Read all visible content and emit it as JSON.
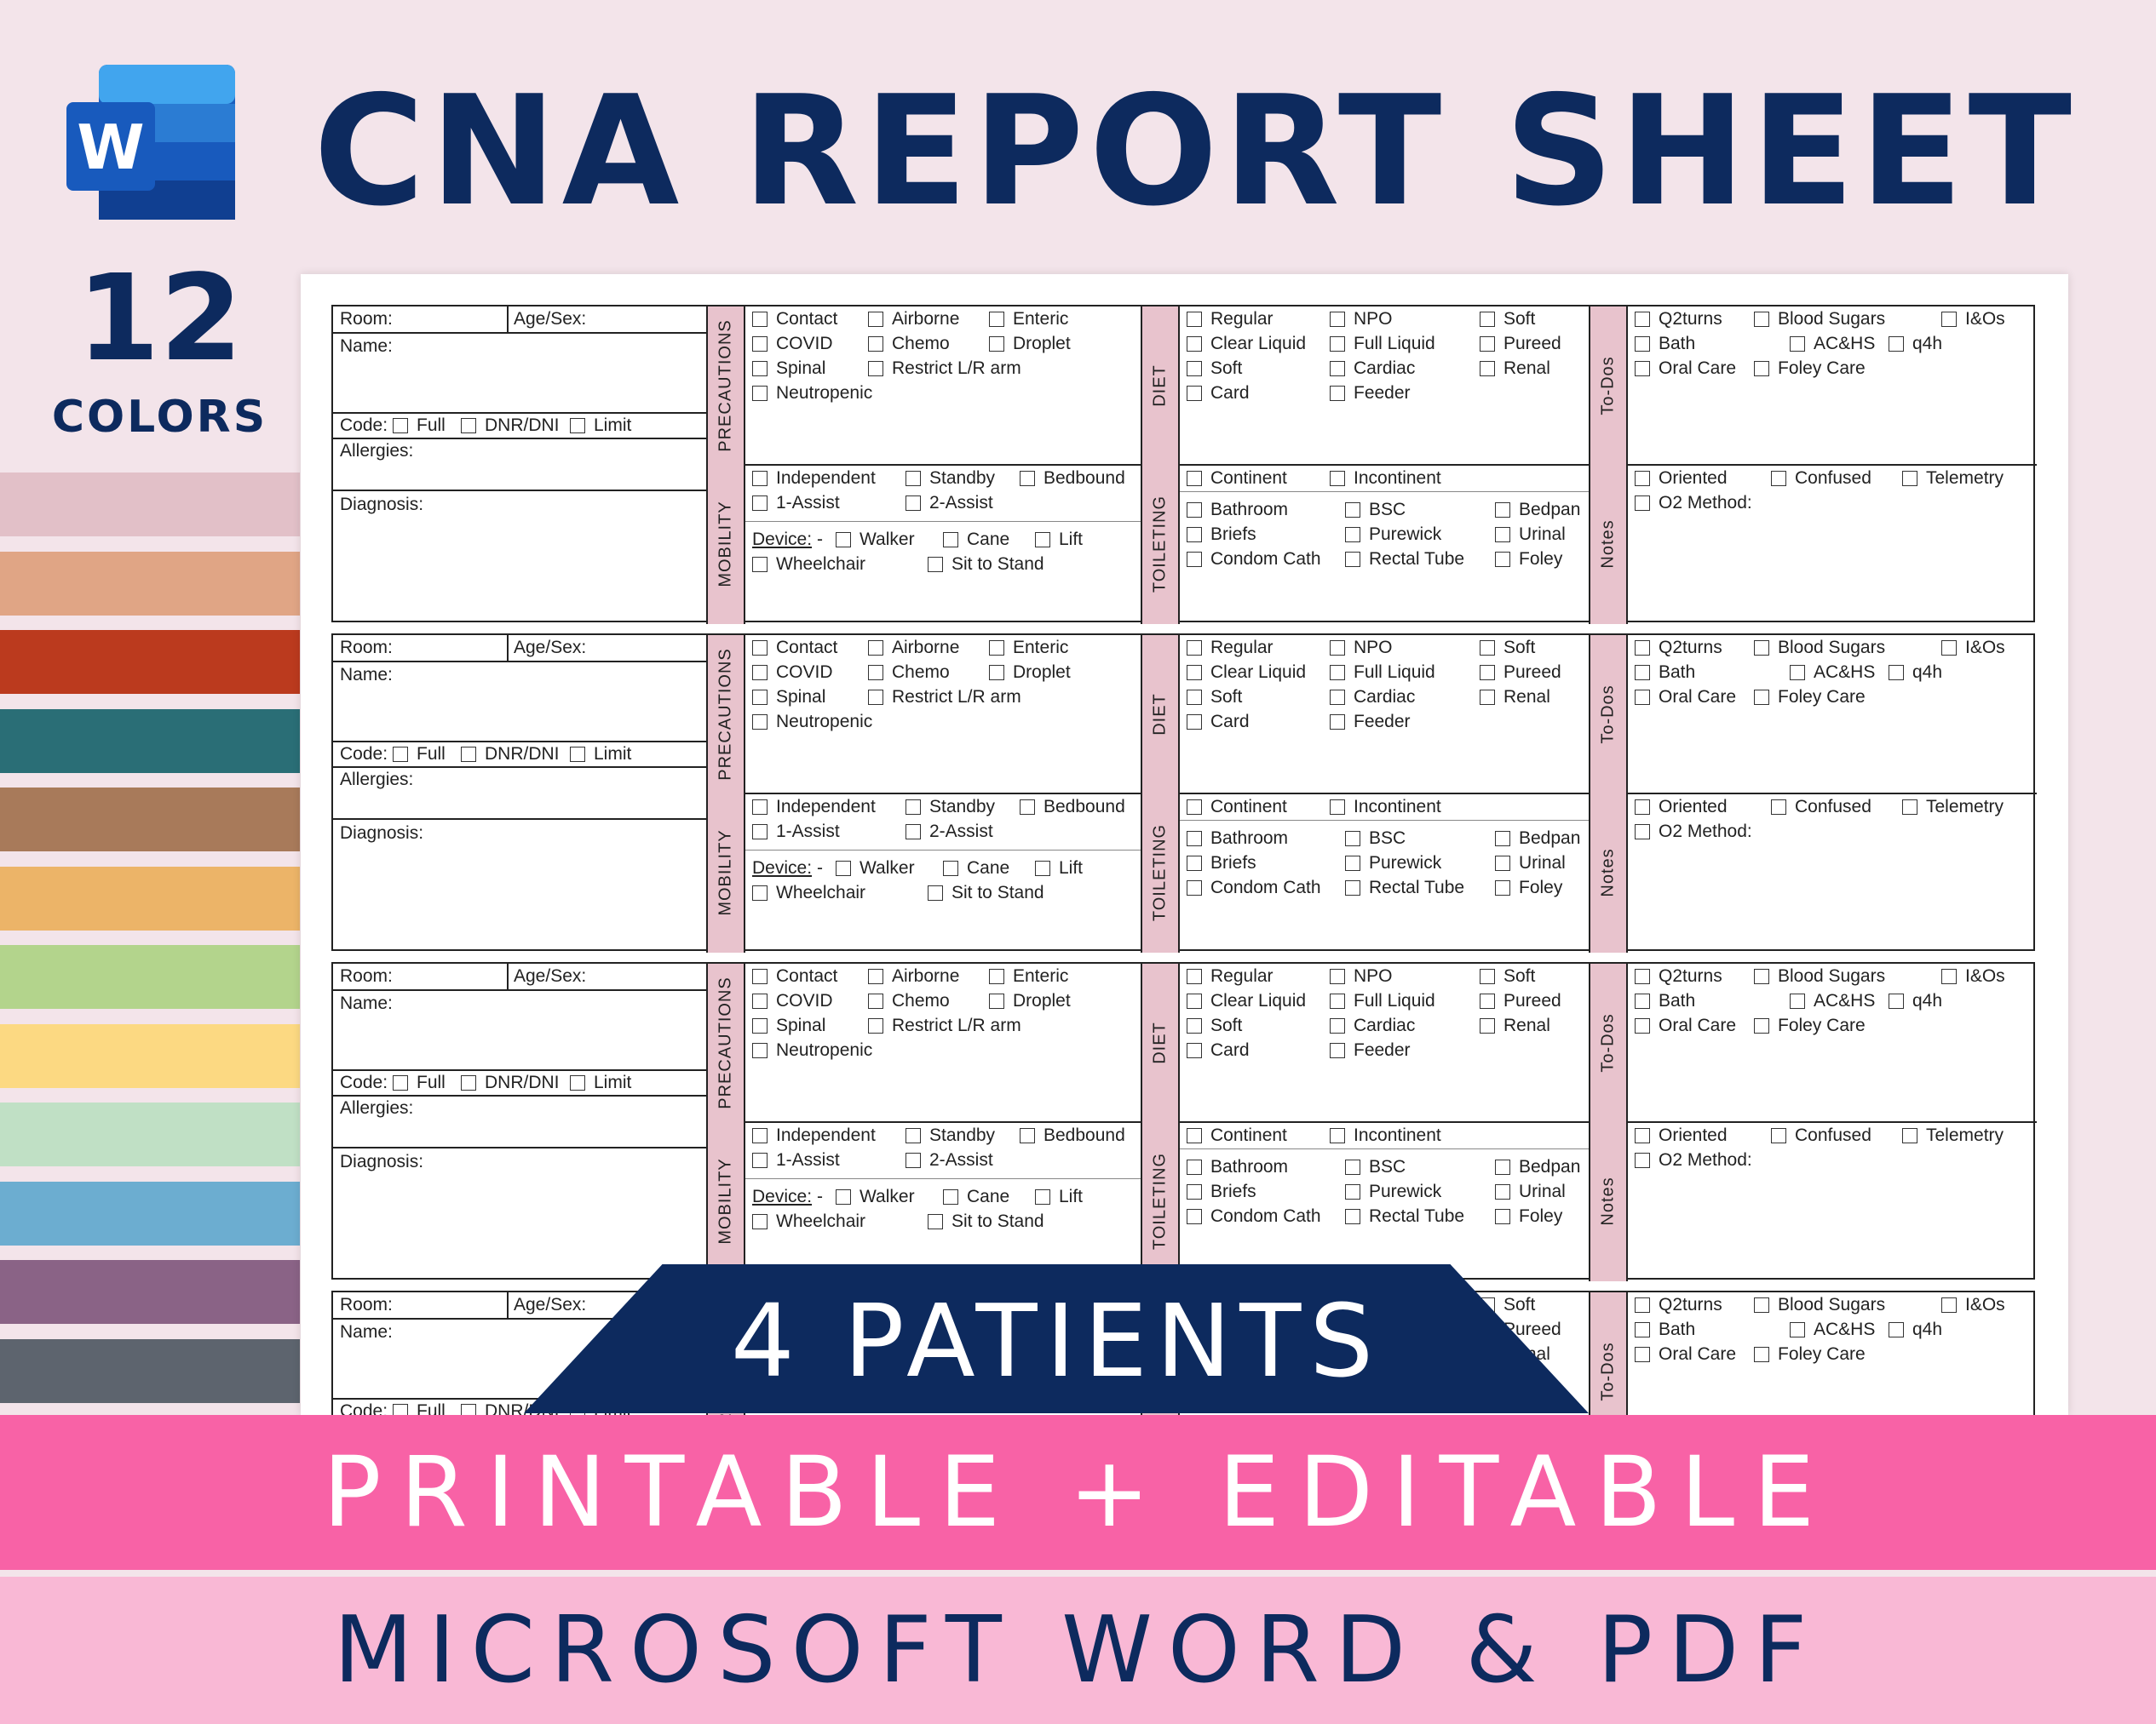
{
  "header": {
    "title": "CNA REPORT SHEET",
    "app_icon": "microsoft-word-icon",
    "colors_count": "12",
    "colors_label": "COLORS"
  },
  "swatch_colors": [
    "#e2c0c8",
    "#e0a585",
    "#bb3a1e",
    "#2a6e76",
    "#a87a5a",
    "#ecb468",
    "#b3d48c",
    "#fcd982",
    "#c0e0c5",
    "#6cadd0",
    "#8a6386",
    "#5d646e"
  ],
  "accent": "#e8c3cd",
  "patient_form": {
    "room": "Room:",
    "age_sex": "Age/Sex:",
    "name": "Name:",
    "code": "Code:",
    "code_options": [
      "Full",
      "DNR/DNI",
      "Limit"
    ],
    "allergies": "Allergies:",
    "diagnosis": "Diagnosis:",
    "precautions_label": "PRECAUTIONS",
    "precautions": [
      "Contact",
      "Airborne",
      "Enteric",
      "COVID",
      "Chemo",
      "Droplet",
      "Spinal",
      "Restrict L/R arm",
      "Neutropenic"
    ],
    "mobility_label": "MOBILITY",
    "mobility": [
      "Independent",
      "Standby",
      "Bedbound",
      "1-Assist",
      "2-Assist"
    ],
    "device_label": "Device:",
    "device_suffix": "-",
    "devices": [
      "Walker",
      "Cane",
      "Lift",
      "Wheelchair",
      "Sit to Stand"
    ],
    "diet_label": "DIET",
    "diet": [
      "Regular",
      "NPO",
      "Soft",
      "Clear Liquid",
      "Full Liquid",
      "Pureed",
      "Soft",
      "Cardiac",
      "Renal",
      "Card",
      "Feeder"
    ],
    "toileting_label": "TOILETING",
    "continence": [
      "Continent",
      "Incontinent"
    ],
    "toileting": [
      "Bathroom",
      "BSC",
      "Bedpan",
      "Briefs",
      "Purewick",
      "Urinal",
      "Condom Cath",
      "Rectal Tube",
      "Foley"
    ],
    "todos_label": "To-Dos",
    "todos": [
      "Q2turns",
      "Blood Sugars",
      "I&Os",
      "Bath",
      "AC&HS",
      "q4h",
      "Oral Care",
      "Foley Care"
    ],
    "notes_label": "Notes",
    "notes": [
      "Oriented",
      "Confused",
      "Telemetry",
      "O2 Method:"
    ]
  },
  "banner_patients": "4 PATIENTS",
  "banner_printable": "PRINTABLE + EDITABLE",
  "banner_formats": "MICROSOFT WORD & PDF"
}
